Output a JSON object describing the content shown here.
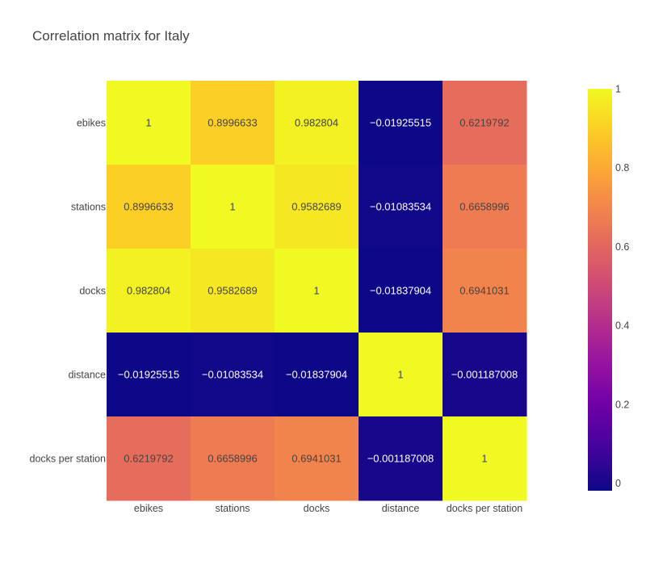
{
  "chart_data": {
    "type": "heatmap",
    "title": "Correlation matrix for Italy",
    "x_labels": [
      "ebikes",
      "stations",
      "docks",
      "distance",
      "docks per station"
    ],
    "y_labels": [
      "ebikes",
      "stations",
      "docks",
      "distance",
      "docks per station"
    ],
    "z": [
      [
        1,
        0.8996633,
        0.982804,
        -0.01925515,
        0.6219792
      ],
      [
        0.8996633,
        1,
        0.9582689,
        -0.01083534,
        0.6658996
      ],
      [
        0.982804,
        0.9582689,
        1,
        -0.01837904,
        0.6941031
      ],
      [
        -0.01925515,
        -0.01083534,
        -0.01837904,
        1,
        -0.001187008
      ],
      [
        0.6219792,
        0.6658996,
        0.6941031,
        -0.001187008,
        1
      ]
    ],
    "text": [
      [
        "1",
        "0.8996633",
        "0.982804",
        "−0.01925515",
        "0.6219792"
      ],
      [
        "0.8996633",
        "1",
        "0.9582689",
        "−0.01083534",
        "0.6658996"
      ],
      [
        "0.982804",
        "0.9582689",
        "1",
        "−0.01837904",
        "0.6941031"
      ],
      [
        "−0.01925515",
        "−0.01083534",
        "−0.01837904",
        "1",
        "−0.001187008"
      ],
      [
        "0.6219792",
        "0.6658996",
        "0.6941031",
        "−0.001187008",
        "1"
      ]
    ],
    "colorscale": "plasma",
    "zrange": [
      -0.01925515,
      1
    ],
    "colorbar": {
      "ticks": [
        0,
        0.2,
        0.4,
        0.6,
        0.8,
        1
      ],
      "tick_labels": [
        "0",
        "0.2",
        "0.4",
        "0.6",
        "0.8",
        "1"
      ]
    },
    "colors": {
      "title": "#444444",
      "axis_text": "#444444",
      "dark_text": "#444444",
      "light_text": "#ffffff"
    }
  }
}
